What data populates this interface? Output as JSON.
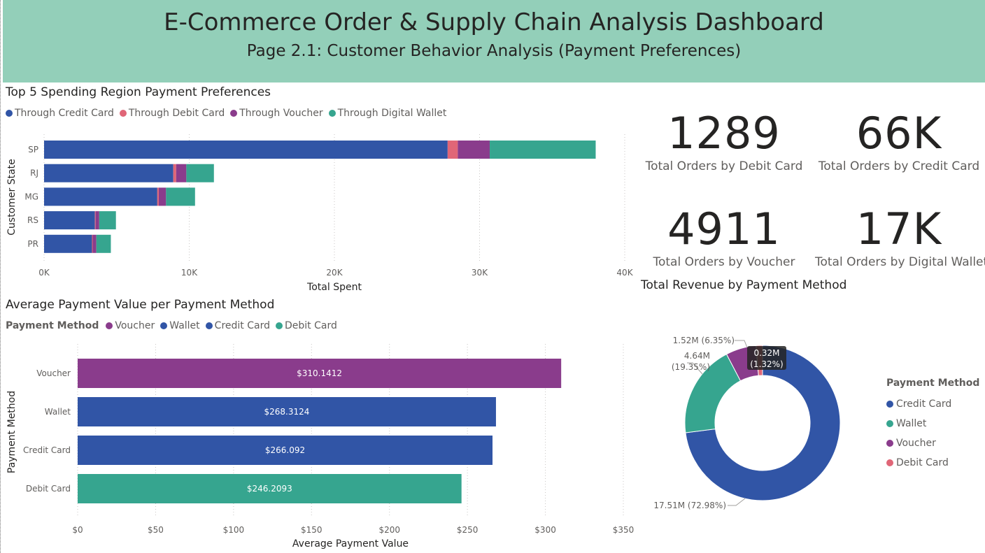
{
  "header": {
    "title": "E-Commerce Order & Supply Chain Analysis Dashboard",
    "subtitle": "Page 2.1: Customer Behavior Analysis (Payment Preferences)"
  },
  "colors": {
    "credit": "#3155a6",
    "debit": "#e06677",
    "voucher": "#8a3c8c",
    "wallet": "#36a58f",
    "header_bg": "#93cfb9"
  },
  "kpis": [
    {
      "value": "1289",
      "label": "Total Orders by Debit Card"
    },
    {
      "value": "66K",
      "label": "Total Orders by Credit Card"
    },
    {
      "value": "4911",
      "label": "Total Orders by Voucher"
    },
    {
      "value": "17K",
      "label": "Total Orders by Digital Wallet"
    }
  ],
  "chart_data": [
    {
      "type": "bar",
      "orientation": "horizontal",
      "stacked": true,
      "title": "Top 5 Spending Region Payment Preferences",
      "xlabel": "Total Spent",
      "ylabel": "Customer State",
      "categories": [
        "SP",
        "RJ",
        "MG",
        "RS",
        "PR"
      ],
      "series": [
        {
          "name": "Through Credit Card",
          "color": "#3155a6",
          "values": [
            27800,
            8900,
            7800,
            3500,
            3300
          ]
        },
        {
          "name": "Through Debit Card",
          "color": "#e06677",
          "values": [
            700,
            200,
            100,
            50,
            50
          ]
        },
        {
          "name": "Through Voucher",
          "color": "#8a3c8c",
          "values": [
            2200,
            700,
            500,
            250,
            250
          ]
        },
        {
          "name": "Through Digital Wallet",
          "color": "#36a58f",
          "values": [
            7300,
            1900,
            2000,
            1150,
            1000
          ]
        }
      ],
      "xlim": [
        0,
        40000
      ],
      "xticks": [
        "0K",
        "10K",
        "20K",
        "30K",
        "40K"
      ],
      "legend": "top"
    },
    {
      "type": "bar",
      "orientation": "horizontal",
      "title": "Average Payment Value per Payment Method",
      "xlabel": "Average Payment Value",
      "ylabel": "Payment Method",
      "legend_title": "Payment Method",
      "legend_entries": [
        {
          "name": "Voucher",
          "color": "#8a3c8c"
        },
        {
          "name": "Wallet",
          "color": "#3155a6"
        },
        {
          "name": "Credit Card",
          "color": "#3155a6"
        },
        {
          "name": "Debit Card",
          "color": "#36a58f"
        }
      ],
      "categories": [
        "Voucher",
        "Wallet",
        "Credit Card",
        "Debit Card"
      ],
      "values": [
        310.1412,
        268.3124,
        266.092,
        246.2093
      ],
      "data_labels": [
        "$310.1412",
        "$268.3124",
        "$266.092",
        "$246.2093"
      ],
      "bar_colors": [
        "#8a3c8c",
        "#3155a6",
        "#3155a6",
        "#36a58f"
      ],
      "xlim": [
        0,
        350
      ],
      "xticks": [
        "$0",
        "$50",
        "$100",
        "$150",
        "$200",
        "$250",
        "$300",
        "$350"
      ],
      "legend": "top"
    },
    {
      "type": "pie",
      "donut": true,
      "title": "Total Revenue by Payment Method",
      "legend_title": "Payment Method",
      "slices": [
        {
          "name": "Credit Card",
          "value": 17.51,
          "percent": 72.98,
          "label": "17.51M (72.98%)",
          "color": "#3155a6"
        },
        {
          "name": "Wallet",
          "value": 4.64,
          "percent": 19.35,
          "label": "4.64M (19.35%)",
          "color": "#36a58f"
        },
        {
          "name": "Voucher",
          "value": 1.52,
          "percent": 6.35,
          "label": "1.52M (6.35%)",
          "color": "#8a3c8c"
        },
        {
          "name": "Debit Card",
          "value": 0.32,
          "percent": 1.32,
          "label": "0.32M (1.32%)",
          "color": "#e06677"
        }
      ],
      "legend": "right"
    }
  ]
}
